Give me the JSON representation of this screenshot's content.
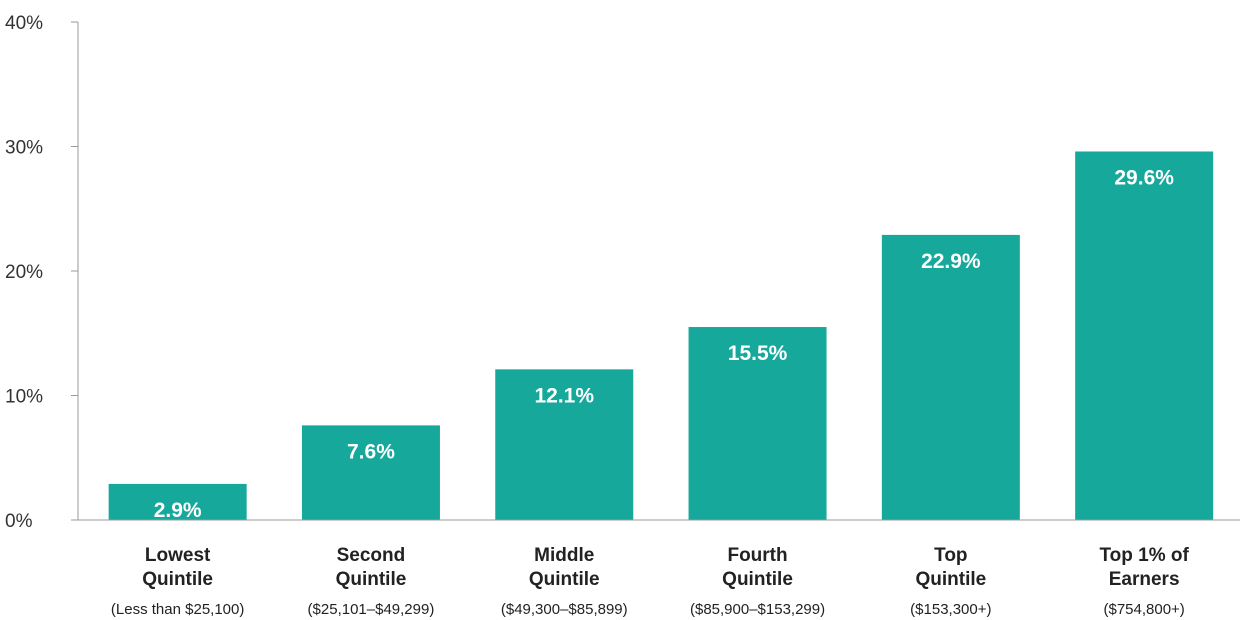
{
  "chart_data": {
    "type": "bar",
    "categories": [
      {
        "lines": [
          "Lowest",
          "Quintile"
        ],
        "sub": "(Less than $25,100)"
      },
      {
        "lines": [
          "Second",
          "Quintile"
        ],
        "sub": "($25,101–$49,299)"
      },
      {
        "lines": [
          "Middle",
          "Quintile"
        ],
        "sub": "($49,300–$85,899)"
      },
      {
        "lines": [
          "Fourth",
          "Quintile"
        ],
        "sub": "($85,900–$153,299)"
      },
      {
        "lines": [
          "Top",
          "Quintile"
        ],
        "sub": "($153,300+)"
      },
      {
        "lines": [
          "Top 1% of",
          "Earners"
        ],
        "sub": "($754,800+)"
      }
    ],
    "values": [
      2.9,
      7.6,
      12.1,
      15.5,
      22.9,
      29.6
    ],
    "data_labels": [
      "2.9%",
      "7.6%",
      "12.1%",
      "15.5%",
      "22.9%",
      "29.6%"
    ],
    "y_ticks": [
      {
        "value": 0,
        "label": "0%"
      },
      {
        "value": 10,
        "label": "10%"
      },
      {
        "value": 20,
        "label": "20%"
      },
      {
        "value": 30,
        "label": "30%"
      },
      {
        "value": 40,
        "label": "40%"
      }
    ],
    "ylim": [
      0,
      40
    ],
    "grid": false,
    "colors": {
      "bar": "#17a89c",
      "axis": "#999999"
    }
  }
}
